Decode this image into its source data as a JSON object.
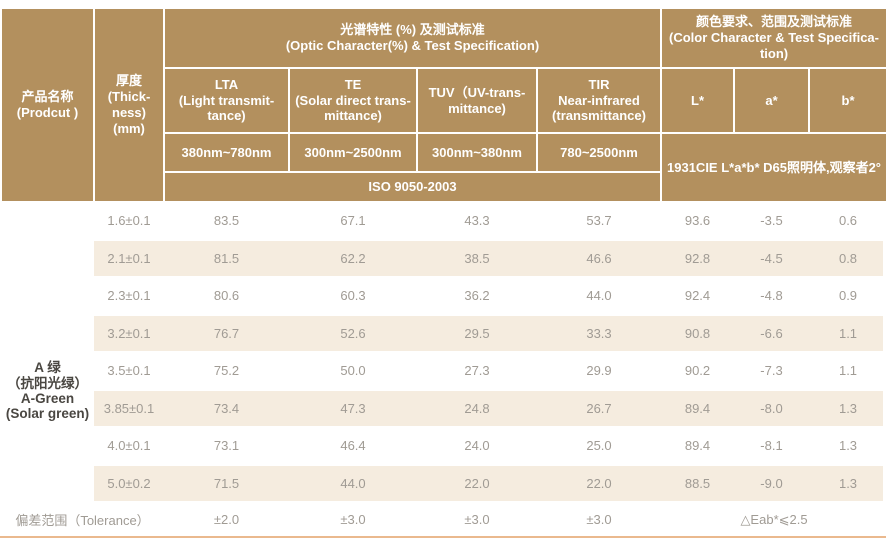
{
  "colors": {
    "header_bg": "#b3905e",
    "header_text": "#ffffff",
    "stripe_bg": "#f5ecdf",
    "body_text": "#a09b94",
    "product_text": "#4a4742",
    "bottom_line": "#eab98e"
  },
  "table": {
    "header": {
      "product": "产品名称\n(Prodcut )",
      "thickness": "厚度\n(Thick-\nness)\n(mm)",
      "optic_group": "光谱特性 (%) 及测试标准\n(Optic Character(%) & Test Specification)",
      "color_group": "颜色要求、范围及测试标准\n(Color Character & Test Specifica-\ntion)",
      "columns": {
        "lta": "LTA\n(Light transmit-\ntance)",
        "te": "TE\n(Solar direct trans-\nmittance)",
        "tuv": "TUV（UV-trans-\nmittance)",
        "tir": "TIR\nNear-infrared\n(transmittance)",
        "l_star": "L*",
        "a_star": "a*",
        "b_star": "b*"
      },
      "ranges": {
        "lta": "380nm~780nm",
        "te": "300nm~2500nm",
        "tuv": "300nm~380nm",
        "tir": "780~2500nm"
      },
      "iso_standard": "ISO 9050-2003",
      "cie_standard": "1931CIE L*a*b* D65照明体,观察者2°"
    },
    "product_name": "A 绿\n（抗阳光绿）\nA-Green\n(Solar green)",
    "rows": [
      {
        "thickness": "1.6±0.1",
        "lta": "83.5",
        "te": "67.1",
        "tuv": "43.3",
        "tir": "53.7",
        "l": "93.6",
        "a": "-3.5",
        "b": "0.6"
      },
      {
        "thickness": "2.1±0.1",
        "lta": "81.5",
        "te": "62.2",
        "tuv": "38.5",
        "tir": "46.6",
        "l": "92.8",
        "a": "-4.5",
        "b": "0.8"
      },
      {
        "thickness": "2.3±0.1",
        "lta": "80.6",
        "te": "60.3",
        "tuv": "36.2",
        "tir": "44.0",
        "l": "92.4",
        "a": "-4.8",
        "b": "0.9"
      },
      {
        "thickness": "3.2±0.1",
        "lta": "76.7",
        "te": "52.6",
        "tuv": "29.5",
        "tir": "33.3",
        "l": "90.8",
        "a": "-6.6",
        "b": "1.1"
      },
      {
        "thickness": "3.5±0.1",
        "lta": "75.2",
        "te": "50.0",
        "tuv": "27.3",
        "tir": "29.9",
        "l": "90.2",
        "a": "-7.3",
        "b": "1.1"
      },
      {
        "thickness": "3.85±0.1",
        "lta": "73.4",
        "te": "47.3",
        "tuv": "24.8",
        "tir": "26.7",
        "l": "89.4",
        "a": "-8.0",
        "b": "1.3"
      },
      {
        "thickness": "4.0±0.1",
        "lta": "73.1",
        "te": "46.4",
        "tuv": "24.0",
        "tir": "25.0",
        "l": "89.4",
        "a": "-8.1",
        "b": "1.3"
      },
      {
        "thickness": "5.0±0.2",
        "lta": "71.5",
        "te": "44.0",
        "tuv": "22.0",
        "tir": "22.0",
        "l": "88.5",
        "a": "-9.0",
        "b": "1.3"
      }
    ],
    "tolerance": {
      "label": "偏差范围（Tolerance）",
      "lta": "±2.0",
      "te": "±3.0",
      "tuv": "±3.0",
      "tir": "±3.0",
      "color": "△Eab*⩽2.5"
    }
  }
}
